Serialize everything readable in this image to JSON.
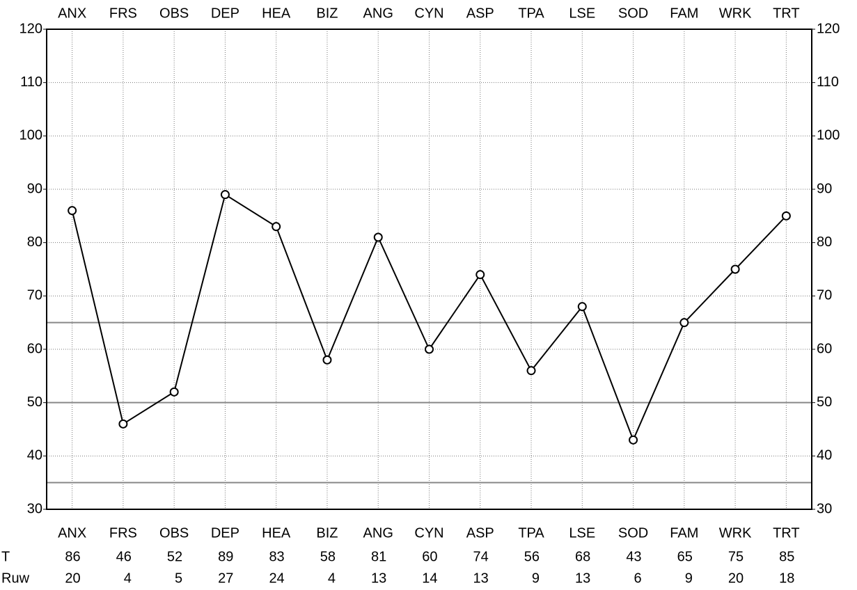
{
  "chart_data": {
    "type": "line",
    "categories": [
      "ANX",
      "FRS",
      "OBS",
      "DEP",
      "HEA",
      "BIZ",
      "ANG",
      "CYN",
      "ASP",
      "TPA",
      "LSE",
      "SOD",
      "FAM",
      "WRK",
      "TRT"
    ],
    "values": [
      86,
      46,
      52,
      89,
      83,
      58,
      81,
      60,
      74,
      56,
      68,
      43,
      65,
      75,
      85
    ],
    "color": "#000000",
    "ylim": [
      30,
      120
    ],
    "yticks": [
      30,
      40,
      50,
      60,
      70,
      80,
      90,
      100,
      110,
      120
    ],
    "grid": true,
    "reference_lines": [
      65,
      50,
      35
    ],
    "table": {
      "row_labels": [
        "T",
        "Ruw"
      ],
      "raw_values": [
        20,
        4,
        5,
        27,
        24,
        4,
        13,
        14,
        13,
        9,
        13,
        6,
        9,
        20,
        18
      ]
    }
  }
}
